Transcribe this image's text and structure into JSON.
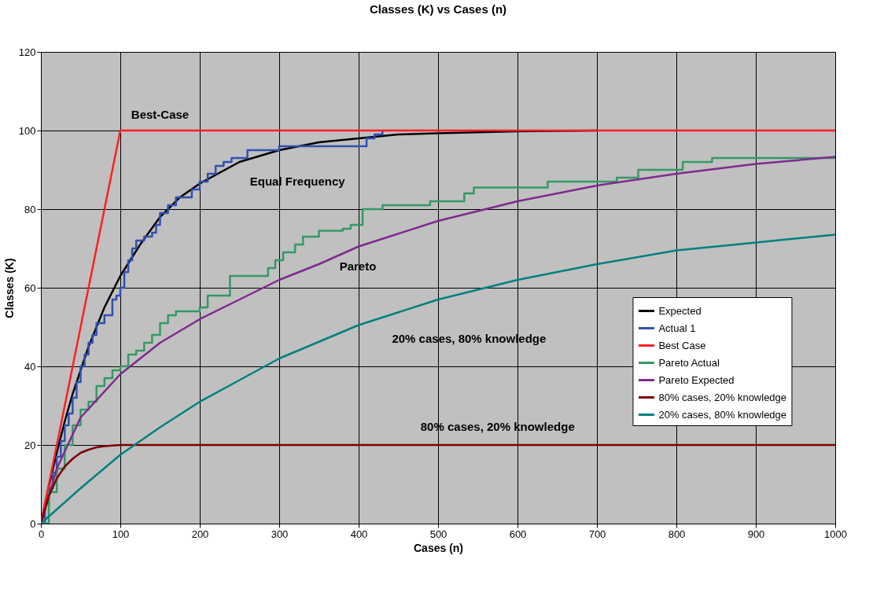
{
  "chart_data": {
    "type": "line",
    "title": "Classes (K) vs Cases (n)",
    "xlabel": "Cases (n)",
    "ylabel": "Classes (K)",
    "xlim": [
      0,
      1000
    ],
    "xticks": [
      0,
      100,
      200,
      300,
      400,
      500,
      600,
      700,
      800,
      900,
      1000
    ],
    "ylim": [
      0,
      120
    ],
    "yticks": [
      0,
      20,
      40,
      60,
      80,
      100,
      120
    ],
    "grid": true,
    "legend": "right",
    "series": [
      {
        "name": "Expected",
        "color": "#000000",
        "x": [
          0,
          10,
          20,
          30,
          40,
          50,
          60,
          70,
          80,
          90,
          100,
          125,
          150,
          175,
          200,
          250,
          300,
          350,
          400,
          450,
          500,
          600,
          700
        ],
        "values": [
          0,
          9.5,
          18,
          26,
          33,
          39,
          45,
          50,
          55,
          59,
          63,
          71,
          78,
          83,
          86.5,
          92,
          95,
          97,
          98,
          99,
          99.3,
          99.8,
          100
        ]
      },
      {
        "name": "Actual 1",
        "color": "#3050b0",
        "type": "step",
        "x": [
          0,
          5,
          10,
          15,
          20,
          25,
          30,
          35,
          40,
          45,
          50,
          55,
          60,
          65,
          70,
          80,
          90,
          95,
          100,
          105,
          110,
          115,
          120,
          125,
          130,
          140,
          145,
          150,
          160,
          170,
          180,
          190,
          200,
          210,
          220,
          230,
          240,
          260,
          300,
          400,
          410,
          420,
          430
        ],
        "values": [
          0,
          5,
          9,
          13,
          17,
          21,
          25,
          28,
          32,
          36,
          40,
          43,
          46,
          48,
          51,
          53,
          57,
          58,
          60,
          64,
          67,
          70,
          72,
          72,
          73,
          74,
          76,
          79,
          81,
          83,
          83,
          85,
          87,
          89,
          91,
          92,
          93,
          95,
          96,
          96,
          98,
          99,
          100
        ]
      },
      {
        "name": "Best Case",
        "color": "#ff2020",
        "x": [
          0,
          100,
          1000
        ],
        "values": [
          0,
          100,
          100
        ]
      },
      {
        "name": "Pareto Actual",
        "color": "#339966",
        "type": "step",
        "x": [
          0,
          10,
          20,
          30,
          40,
          50,
          60,
          70,
          80,
          90,
          100,
          110,
          120,
          130,
          140,
          150,
          160,
          170,
          190,
          200,
          210,
          238,
          286,
          295,
          305,
          320,
          330,
          350,
          380,
          390,
          405,
          430,
          490,
          533,
          545,
          638,
          725,
          752,
          808,
          845,
          1000
        ],
        "values": [
          0,
          8,
          14,
          20,
          25,
          29,
          31,
          35,
          37,
          39,
          40,
          43,
          44,
          46,
          48,
          51,
          53,
          54,
          54,
          55,
          58,
          63,
          65,
          67,
          69,
          71,
          73,
          74.5,
          75,
          76,
          80,
          81,
          82,
          84,
          85.5,
          87,
          88,
          90,
          92,
          93,
          93
        ]
      },
      {
        "name": "Pareto Expected",
        "color": "#7f2a8f",
        "x": [
          0,
          20,
          50,
          100,
          150,
          200,
          250,
          300,
          350,
          400,
          500,
          600,
          700,
          800,
          900,
          1000
        ],
        "values": [
          0,
          14,
          27,
          38,
          46,
          52,
          57,
          62,
          66,
          70.5,
          77,
          82,
          86,
          89,
          91.5,
          93.3
        ]
      },
      {
        "name": "80% cases, 20% knowledge",
        "color": "#800000",
        "x": [
          0,
          10,
          20,
          30,
          40,
          50,
          60,
          70,
          80,
          100,
          1000
        ],
        "values": [
          0,
          7,
          11.5,
          14.5,
          16.5,
          18,
          18.8,
          19.4,
          19.7,
          20,
          20
        ]
      },
      {
        "name": "20% cases, 80% knowledge",
        "color": "#008080",
        "x": [
          0,
          50,
          100,
          150,
          200,
          250,
          300,
          400,
          500,
          600,
          700,
          800,
          900,
          1000
        ],
        "values": [
          0,
          9,
          17.5,
          24.5,
          31,
          36.5,
          42,
          50.5,
          57,
          62,
          66,
          69.5,
          71.5,
          73.5
        ]
      }
    ],
    "annotations": [
      "Best-Case",
      "Equal Frequency",
      "Pareto",
      "20% cases, 80% knowledge",
      "80% cases, 20% knowledge"
    ]
  }
}
